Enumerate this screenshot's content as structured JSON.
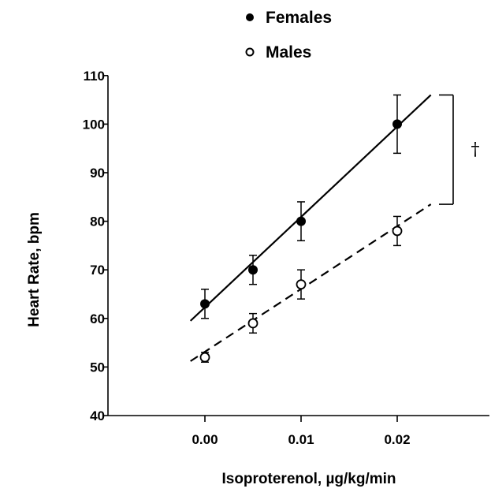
{
  "chart_data": {
    "type": "line",
    "xlabel": "Isoproterenol, µg/kg/min",
    "ylabel": "Heart Rate, bpm",
    "xticks": [
      "0.00",
      "0.01",
      "0.02"
    ],
    "x_tick_values": [
      0,
      0.01,
      0.02
    ],
    "ylim": [
      40,
      110
    ],
    "yticks": [
      "40",
      "50",
      "60",
      "70",
      "80",
      "90",
      "100",
      "110"
    ],
    "y_tick_values": [
      40,
      50,
      60,
      70,
      80,
      90,
      100,
      110
    ],
    "grid": false,
    "legend_position": "top-center",
    "series": [
      {
        "name": "Females",
        "marker": "filled-circle",
        "line_style": "solid",
        "x": [
          0,
          0.005,
          0.01,
          0.02
        ],
        "y": [
          63,
          70,
          80,
          100
        ],
        "error": [
          3,
          3,
          4,
          6
        ],
        "fit_line": {
          "x": [
            -0.0015,
            0.0235
          ],
          "y": [
            59.5,
            106
          ]
        }
      },
      {
        "name": "Males",
        "marker": "open-circle",
        "line_style": "dashed",
        "x": [
          0,
          0.005,
          0.01,
          0.02
        ],
        "y": [
          52,
          59,
          67,
          78
        ],
        "error": [
          1,
          2,
          3,
          3
        ],
        "fit_line": {
          "x": [
            -0.0015,
            0.0235
          ],
          "y": [
            51.2,
            83.5
          ]
        }
      }
    ],
    "significance": {
      "symbol": "†",
      "y_top": 106,
      "y_bottom": 83.5
    },
    "colors": {
      "ink": "#000000",
      "marker_fill_open": "#ffffff"
    }
  }
}
